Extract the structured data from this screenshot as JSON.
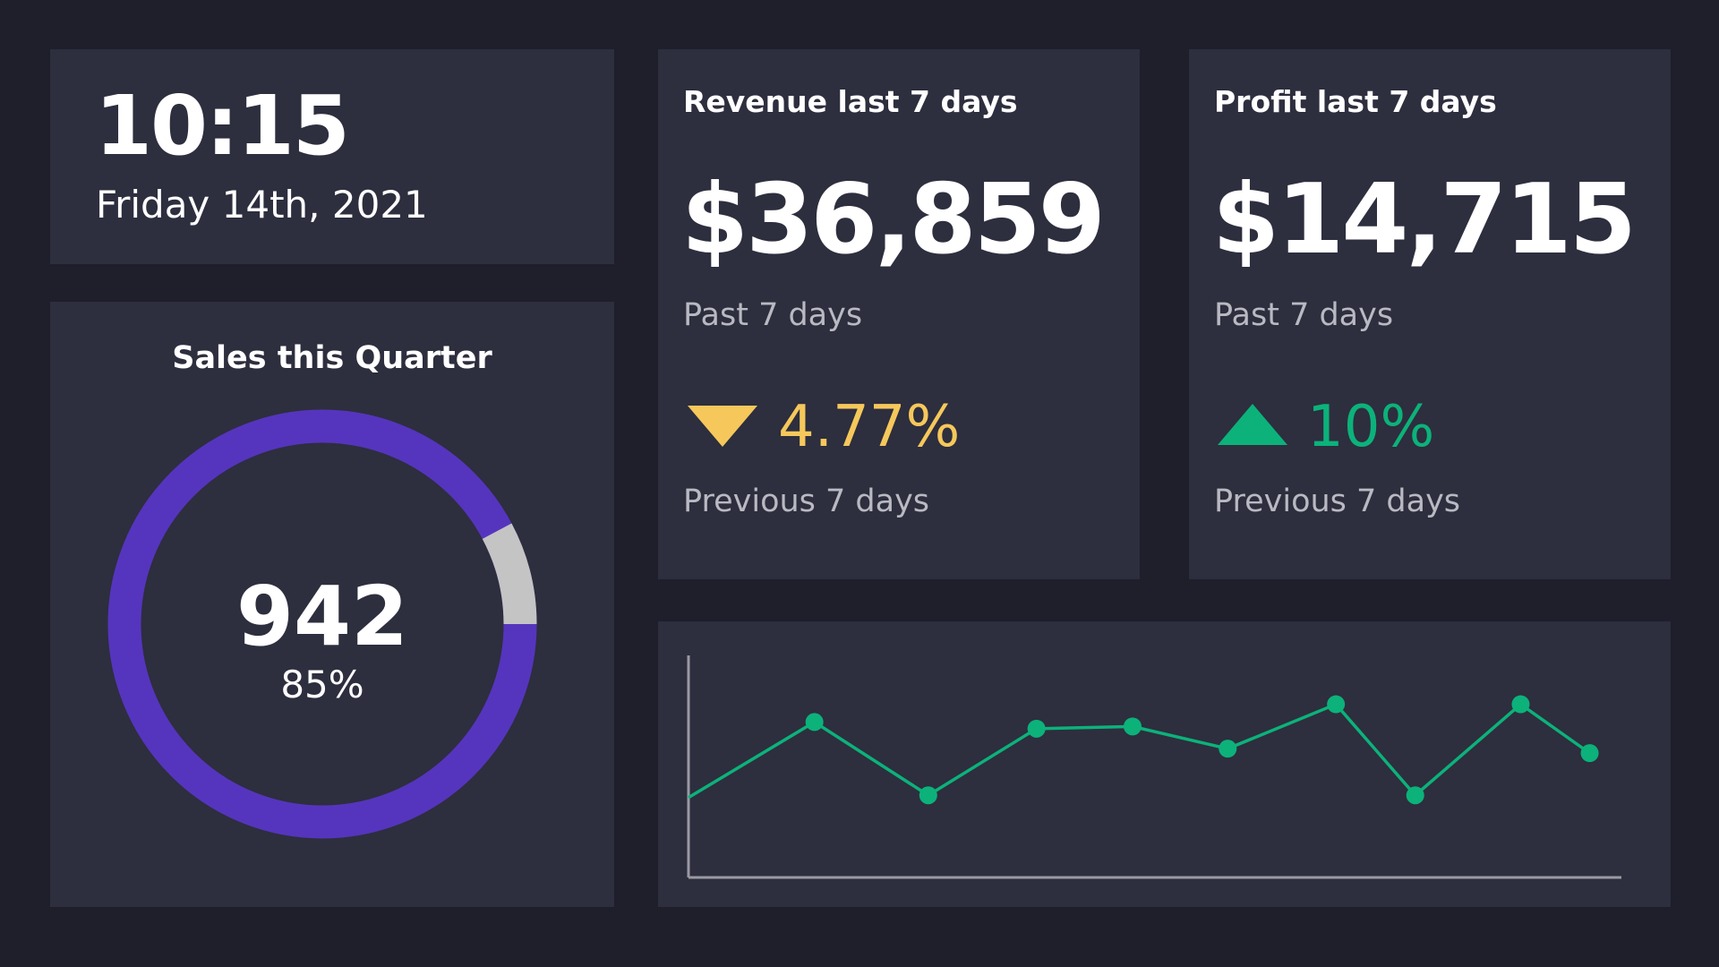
{
  "clock": {
    "time": "10:15",
    "date": "Friday 14th, 2021"
  },
  "sales": {
    "title": "Sales this Quarter",
    "value": "942",
    "percent_label": "85%",
    "percent": 85,
    "colors": {
      "fill": "#5535bd",
      "remainder": "#c4c4c4"
    }
  },
  "revenue": {
    "title": "Revenue last 7 days",
    "value": "$36,859",
    "period": "Past 7 days",
    "change": "4.77%",
    "direction": "down",
    "change_icon": "triangle-down-icon",
    "comparison": "Previous 7 days",
    "color": "#f6c85b"
  },
  "profit": {
    "title": "Profit last 7 days",
    "value": "$14,715",
    "period": "Past 7 days",
    "change": "10%",
    "direction": "up",
    "change_icon": "triangle-up-icon",
    "comparison": "Previous 7 days",
    "color": "#0cb27a"
  },
  "chart_data": {
    "type": "line",
    "title": "",
    "xlabel": "",
    "ylabel": "",
    "xlim": [
      0,
      100
    ],
    "ylim": [
      0,
      100
    ],
    "grid": false,
    "color": "#0cb27a",
    "x": [
      0,
      13.5,
      25.7,
      37.3,
      47.6,
      57.8,
      69.4,
      77.9,
      89.2,
      96.6
    ],
    "values": [
      36,
      70,
      37,
      67,
      68,
      58,
      78,
      37,
      78,
      56
    ],
    "markers": [
      false,
      true,
      true,
      true,
      true,
      true,
      true,
      true,
      true,
      true
    ]
  }
}
